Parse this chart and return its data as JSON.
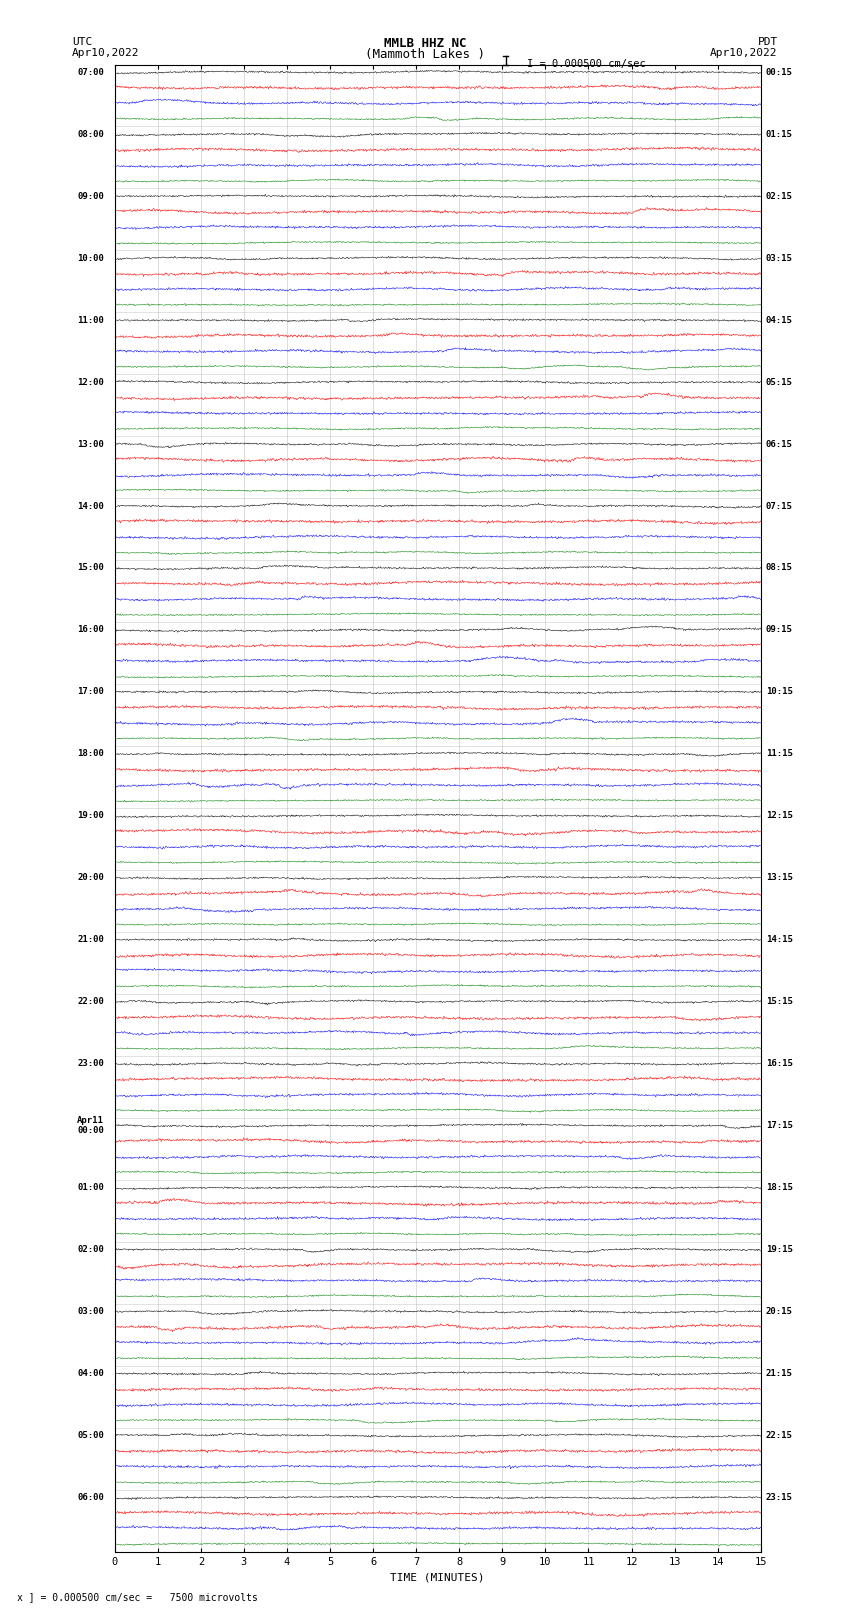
{
  "title_line1": "MMLB HHZ NC",
  "title_line2": "(Mammoth Lakes )",
  "title_line3": "I = 0.000500 cm/sec",
  "label_left_line1": "UTC",
  "label_left_line2": "Apr10,2022",
  "label_right_line1": "PDT",
  "label_right_line2": "Apr10,2022",
  "xlabel": "TIME (MINUTES)",
  "footnote": "x ] = 0.000500 cm/sec =   7500 microvolts",
  "utc_labels": [
    "07:00",
    "08:00",
    "09:00",
    "10:00",
    "11:00",
    "12:00",
    "13:00",
    "14:00",
    "15:00",
    "16:00",
    "17:00",
    "18:00",
    "19:00",
    "20:00",
    "21:00",
    "22:00",
    "23:00",
    "Apr11\n00:00",
    "01:00",
    "02:00",
    "03:00",
    "04:00",
    "05:00",
    "06:00"
  ],
  "pdt_labels": [
    "00:15",
    "01:15",
    "02:15",
    "03:15",
    "04:15",
    "05:15",
    "06:15",
    "07:15",
    "08:15",
    "09:15",
    "10:15",
    "11:15",
    "12:15",
    "13:15",
    "14:15",
    "15:15",
    "16:15",
    "17:15",
    "18:15",
    "19:15",
    "20:15",
    "21:15",
    "22:15",
    "23:15"
  ],
  "n_rows": 24,
  "n_traces_per_row": 4,
  "trace_colors": [
    "black",
    "red",
    "blue",
    "green"
  ],
  "bg_color": "white",
  "grid_color": "#999999",
  "n_points": 1800,
  "x_min": 0,
  "x_max": 15,
  "x_ticks": [
    0,
    1,
    2,
    3,
    4,
    5,
    6,
    7,
    8,
    9,
    10,
    11,
    12,
    13,
    14,
    15
  ]
}
